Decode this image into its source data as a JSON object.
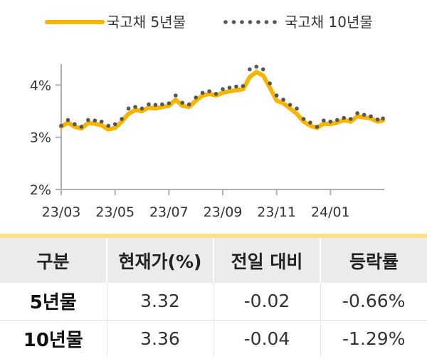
{
  "chart_data": {
    "type": "line",
    "title": "",
    "xlabel": "",
    "ylabel": "",
    "ylim": [
      2,
      4.4
    ],
    "y_ticks": [
      2,
      3,
      4
    ],
    "y_tick_labels": [
      "2%",
      "3%",
      "4%"
    ],
    "x_range": [
      0,
      12
    ],
    "x_ticks": [
      0,
      2,
      4,
      6,
      8,
      10
    ],
    "x_tick_labels": [
      "23/03",
      "23/05",
      "23/07",
      "23/09",
      "23/11",
      "24/01"
    ],
    "grid": false,
    "legend_position": "top",
    "series": [
      {
        "name": "국고채 5년물",
        "style": "solid",
        "color": "#f7b500",
        "x": [
          0,
          0.25,
          0.5,
          0.75,
          1,
          1.25,
          1.5,
          1.75,
          2,
          2.25,
          2.5,
          2.75,
          3,
          3.25,
          3.5,
          3.75,
          4,
          4.25,
          4.5,
          4.75,
          5,
          5.25,
          5.5,
          5.75,
          6,
          6.25,
          6.5,
          6.75,
          7,
          7.25,
          7.5,
          7.75,
          8,
          8.25,
          8.5,
          8.75,
          9,
          9.25,
          9.5,
          9.75,
          10,
          10.25,
          10.5,
          10.75,
          11,
          11.25,
          11.5,
          11.75,
          11.95
        ],
        "y": [
          3.2,
          3.28,
          3.2,
          3.17,
          3.27,
          3.26,
          3.23,
          3.15,
          3.18,
          3.3,
          3.45,
          3.52,
          3.5,
          3.57,
          3.55,
          3.58,
          3.6,
          3.72,
          3.6,
          3.58,
          3.7,
          3.8,
          3.83,
          3.8,
          3.85,
          3.88,
          3.9,
          3.92,
          4.15,
          4.25,
          4.18,
          3.95,
          3.7,
          3.65,
          3.55,
          3.45,
          3.3,
          3.22,
          3.18,
          3.26,
          3.25,
          3.28,
          3.33,
          3.3,
          3.4,
          3.38,
          3.36,
          3.3,
          3.32
        ]
      },
      {
        "name": "국고채 10년물",
        "style": "dotted",
        "color": "#555555",
        "x": [
          0,
          0.25,
          0.5,
          0.75,
          1,
          1.25,
          1.5,
          1.75,
          2,
          2.25,
          2.5,
          2.75,
          3,
          3.25,
          3.5,
          3.75,
          4,
          4.25,
          4.5,
          4.75,
          5,
          5.25,
          5.5,
          5.75,
          6,
          6.25,
          6.5,
          6.75,
          7,
          7.25,
          7.5,
          7.75,
          8,
          8.25,
          8.5,
          8.75,
          9,
          9.25,
          9.5,
          9.75,
          10,
          10.25,
          10.5,
          10.75,
          11,
          11.25,
          11.5,
          11.75,
          11.95
        ],
        "y": [
          3.22,
          3.33,
          3.25,
          3.2,
          3.33,
          3.32,
          3.3,
          3.22,
          3.25,
          3.35,
          3.55,
          3.58,
          3.55,
          3.63,
          3.62,
          3.63,
          3.65,
          3.8,
          3.66,
          3.63,
          3.76,
          3.85,
          3.88,
          3.83,
          3.92,
          3.95,
          3.97,
          3.98,
          4.3,
          4.35,
          4.3,
          4.03,
          3.8,
          3.72,
          3.62,
          3.55,
          3.35,
          3.28,
          3.2,
          3.32,
          3.3,
          3.33,
          3.37,
          3.35,
          3.46,
          3.43,
          3.4,
          3.34,
          3.36
        ]
      }
    ]
  },
  "table": {
    "headers": [
      "구분",
      "현재가(%)",
      "전일 대비",
      "등락률"
    ],
    "rows": [
      {
        "name": "5년물",
        "price": "3.32",
        "change": "-0.02",
        "rate": "-0.66%"
      },
      {
        "name": "10년물",
        "price": "3.36",
        "change": "-0.04",
        "rate": "-1.29%"
      }
    ]
  },
  "colors": {
    "accent": "#f7b500",
    "dot": "#555555",
    "table_header_bg": "#ebebeb",
    "table_top_border": "#fbe08a"
  }
}
